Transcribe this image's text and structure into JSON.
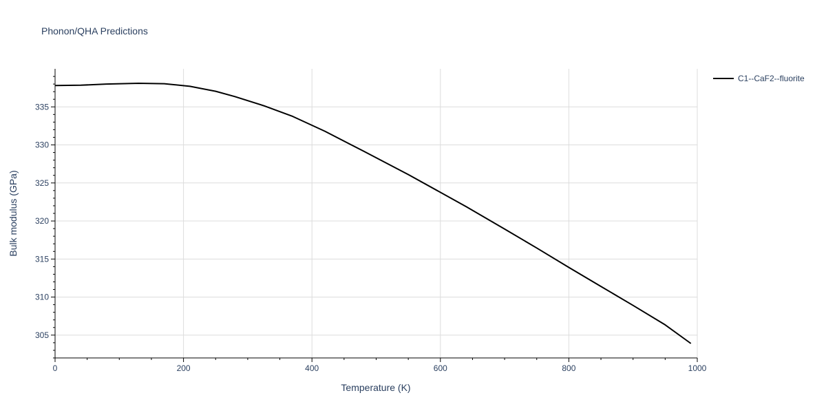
{
  "chart_data": {
    "type": "line",
    "title": "Phonon/QHA Predictions",
    "xlabel": "Temperature (K)",
    "ylabel": "Bulk modulus (GPa)",
    "xlim": [
      0,
      1000
    ],
    "ylim": [
      302,
      340
    ],
    "x_ticks": [
      0,
      200,
      400,
      600,
      800,
      1000
    ],
    "y_ticks": [
      305,
      310,
      315,
      320,
      325,
      330,
      335
    ],
    "grid": true,
    "legend_position": "top-right",
    "series": [
      {
        "name": "C1--CaF2--fluorite",
        "color": "#000000",
        "x": [
          0,
          40,
          80,
          130,
          170,
          210,
          250,
          280,
          325,
          370,
          420,
          480,
          550,
          640,
          700,
          750,
          800,
          850,
          900,
          950,
          990
        ],
        "y": [
          337.8,
          337.85,
          338.0,
          338.1,
          338.05,
          337.7,
          337.05,
          336.35,
          335.15,
          333.75,
          331.8,
          329.2,
          326.1,
          321.9,
          318.95,
          316.45,
          313.9,
          311.4,
          308.9,
          306.35,
          303.9
        ]
      }
    ]
  }
}
